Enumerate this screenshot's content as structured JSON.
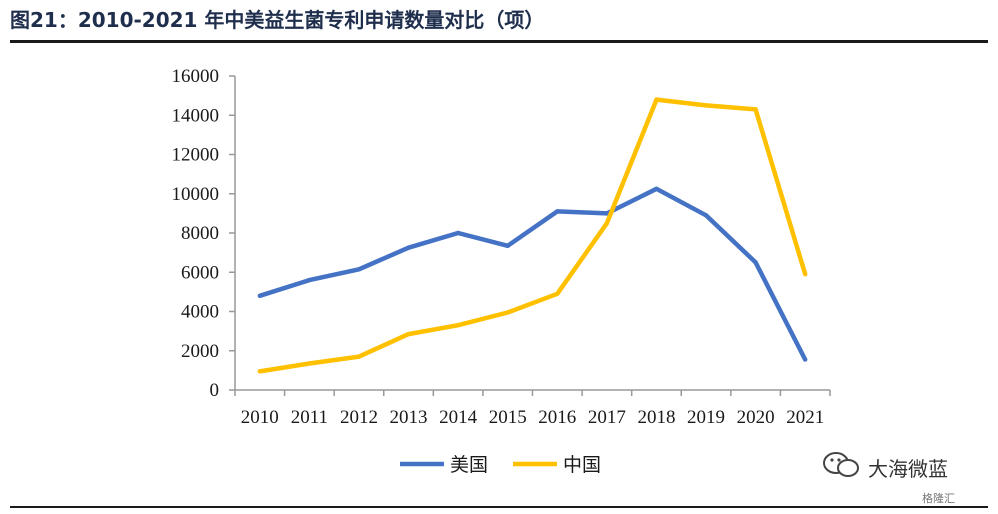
{
  "title": "图21：2010-2021 年中美益生菌专利申请数量对比（项）",
  "watermark": {
    "text": "大海微蓝",
    "sub": "格隆汇"
  },
  "chart_data": {
    "type": "line",
    "categories": [
      "2010",
      "2011",
      "2012",
      "2013",
      "2014",
      "2015",
      "2016",
      "2017",
      "2018",
      "2019",
      "2020",
      "2021"
    ],
    "ylim": [
      0,
      16000
    ],
    "yticks": [
      0,
      2000,
      4000,
      6000,
      8000,
      10000,
      12000,
      14000,
      16000
    ],
    "grid": false,
    "legend_position": "bottom",
    "series": [
      {
        "name": "美国",
        "color": "#4472C4",
        "values": [
          4800,
          5600,
          6150,
          7250,
          8000,
          7350,
          9100,
          9000,
          10250,
          8900,
          6500,
          1550
        ]
      },
      {
        "name": "中国",
        "color": "#FFC000",
        "values": [
          950,
          1350,
          1700,
          2850,
          3300,
          3950,
          4900,
          8500,
          14800,
          14500,
          14300,
          5900
        ]
      }
    ]
  }
}
